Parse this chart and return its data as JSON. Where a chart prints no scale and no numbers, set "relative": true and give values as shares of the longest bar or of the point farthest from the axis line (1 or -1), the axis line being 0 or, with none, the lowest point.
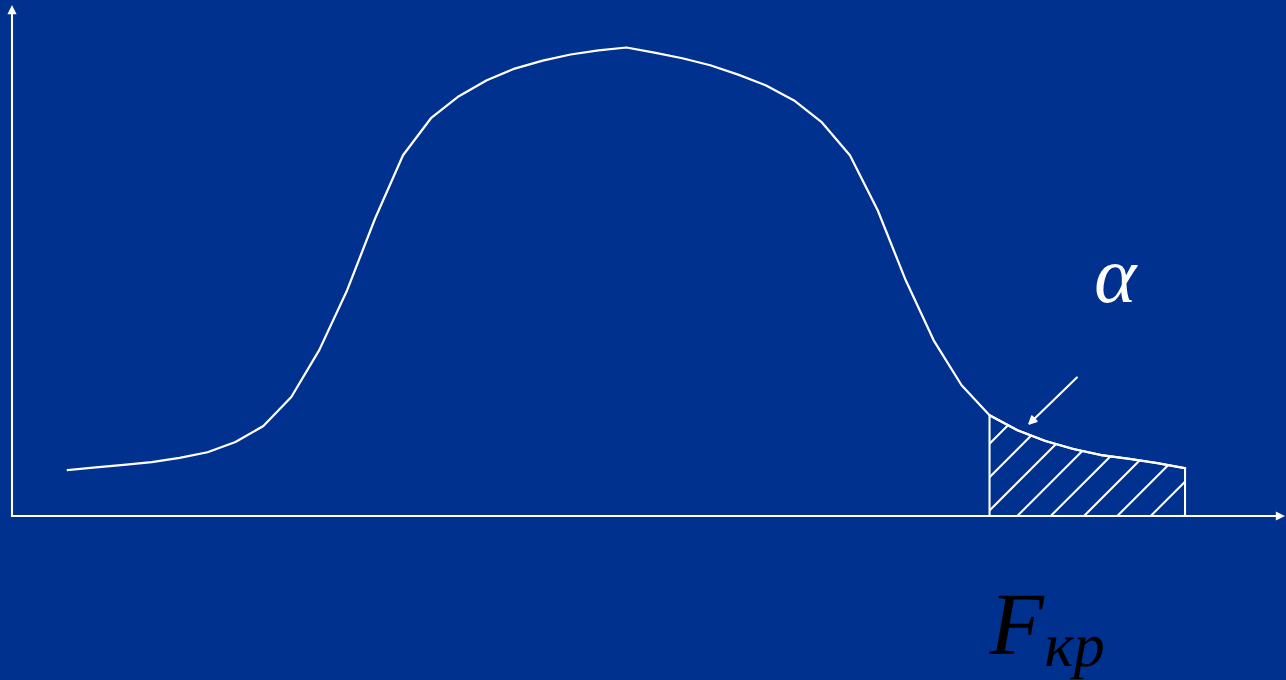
{
  "chart_data": {
    "type": "line",
    "relative": true,
    "categories": [
      null,
      null,
      null,
      null,
      null,
      null,
      null,
      null,
      null,
      null,
      null,
      null,
      null,
      null,
      null,
      null,
      null,
      null,
      null,
      null,
      null,
      null,
      null,
      null,
      null,
      null,
      null,
      null,
      null,
      null,
      null,
      null,
      null,
      null,
      null,
      null,
      null,
      null,
      null,
      null,
      null
    ],
    "series": [
      {
        "color": "#ffffff",
        "values": [
          0.098,
          0.104,
          0.109,
          0.115,
          0.124,
          0.136,
          0.158,
          0.192,
          0.254,
          0.354,
          0.482,
          0.635,
          0.77,
          0.849,
          0.896,
          0.93,
          0.955,
          0.972,
          0.985,
          0.994,
          1,
          0.989,
          0.977,
          0.962,
          0.942,
          0.919,
          0.887,
          0.84,
          0.77,
          0.652,
          0.503,
          0.375,
          0.279,
          0.215,
          0.183,
          0.16,
          0.143,
          0.13,
          0.122,
          0.113,
          0.102
        ]
      },
      {
        "type": "area",
        "color": "#ffffff",
        "values": [
          null,
          null,
          null,
          null,
          null,
          null,
          null,
          null,
          null,
          null,
          null,
          null,
          null,
          null,
          null,
          null,
          null,
          null,
          null,
          null,
          null,
          null,
          null,
          null,
          null,
          null,
          null,
          null,
          null,
          null,
          null,
          null,
          null,
          0.215,
          0.183,
          0.16,
          0.143,
          0.13,
          0.122,
          0.113,
          0.102
        ]
      }
    ],
    "annotations": [
      "α",
      "F$_{кр}$"
    ]
  }
}
